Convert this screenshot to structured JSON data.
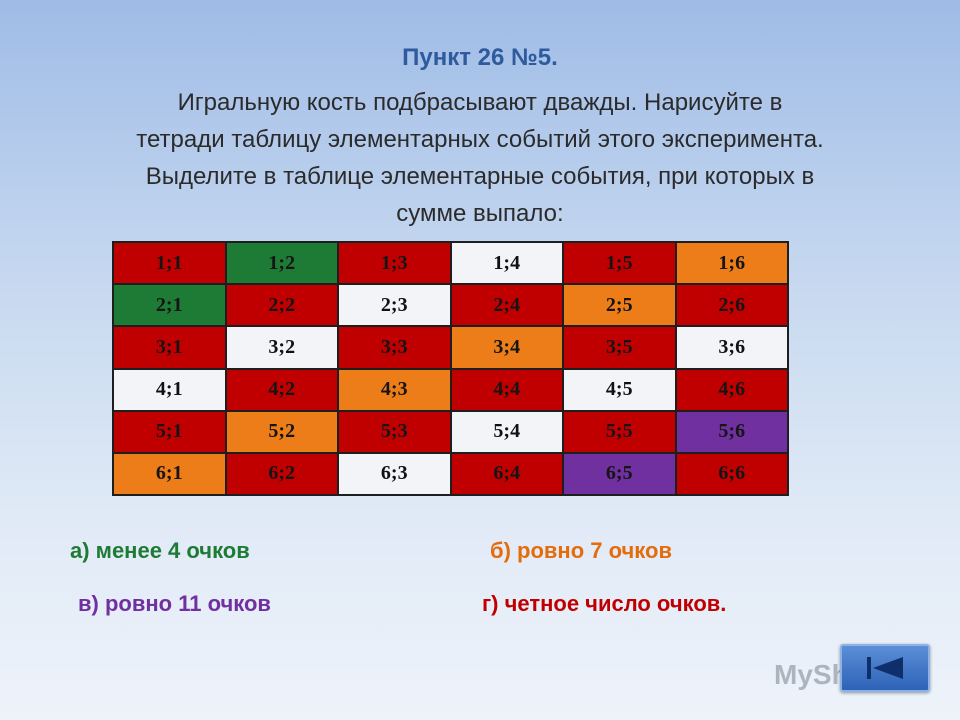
{
  "title": "Пункт 26 №5.",
  "task_lines": [
    "Игральную кость подбрасывают дважды. Нарисуйте в",
    "тетради таблицу элементарных событий этого эксперимента.",
    "Выделите в таблице элементарные события, при которых в",
    "сумме выпало:"
  ],
  "colors": {
    "red": "#c00000",
    "green": "#1e7b35",
    "orange": "#ed7d18",
    "purple": "#7030a0",
    "white": "#f2f4f8",
    "title_blue": "#2e5a9e",
    "answer_a": "#1e7b35",
    "answer_b": "#e46c0a",
    "answer_v": "#7030a0",
    "answer_g": "#c00000"
  },
  "table": {
    "rows": [
      [
        {
          "text": "1;1",
          "color": "red"
        },
        {
          "text": "1;2",
          "color": "green"
        },
        {
          "text": "1;3",
          "color": "red"
        },
        {
          "text": "1;4",
          "color": "white"
        },
        {
          "text": "1;5",
          "color": "red"
        },
        {
          "text": "1;6",
          "color": "orange"
        }
      ],
      [
        {
          "text": "2;1",
          "color": "green"
        },
        {
          "text": "2;2",
          "color": "red"
        },
        {
          "text": "2;3",
          "color": "white"
        },
        {
          "text": "2;4",
          "color": "red"
        },
        {
          "text": "2;5",
          "color": "orange"
        },
        {
          "text": "2;6",
          "color": "red"
        }
      ],
      [
        {
          "text": "3;1",
          "color": "red"
        },
        {
          "text": "3;2",
          "color": "white"
        },
        {
          "text": "3;3",
          "color": "red"
        },
        {
          "text": "3;4",
          "color": "orange"
        },
        {
          "text": "3;5",
          "color": "red"
        },
        {
          "text": "3;6",
          "color": "white"
        }
      ],
      [
        {
          "text": "4;1",
          "color": "white"
        },
        {
          "text": "4;2",
          "color": "red"
        },
        {
          "text": "4;3",
          "color": "orange"
        },
        {
          "text": "4;4",
          "color": "red"
        },
        {
          "text": "4;5",
          "color": "white"
        },
        {
          "text": "4;6",
          "color": "red"
        }
      ],
      [
        {
          "text": "5;1",
          "color": "red"
        },
        {
          "text": "5;2",
          "color": "orange"
        },
        {
          "text": "5;3",
          "color": "red"
        },
        {
          "text": "5;4",
          "color": "white"
        },
        {
          "text": "5;5",
          "color": "red"
        },
        {
          "text": "5;6",
          "color": "purple"
        }
      ],
      [
        {
          "text": "6;1",
          "color": "orange"
        },
        {
          "text": "6;2",
          "color": "red"
        },
        {
          "text": "6;3",
          "color": "white"
        },
        {
          "text": "6;4",
          "color": "red"
        },
        {
          "text": "6;5",
          "color": "purple"
        },
        {
          "text": "6;6",
          "color": "red"
        }
      ]
    ]
  },
  "answers": {
    "a": "а) менее 4 очков",
    "b": "б) ровно 7 очков",
    "v": "в) ровно 11 очков",
    "g": "г) четное число очков."
  },
  "watermark": {
    "text": "MyShared",
    "icon": "presentation-icon"
  },
  "nav_button": {
    "icon": "back-arrow-icon"
  }
}
